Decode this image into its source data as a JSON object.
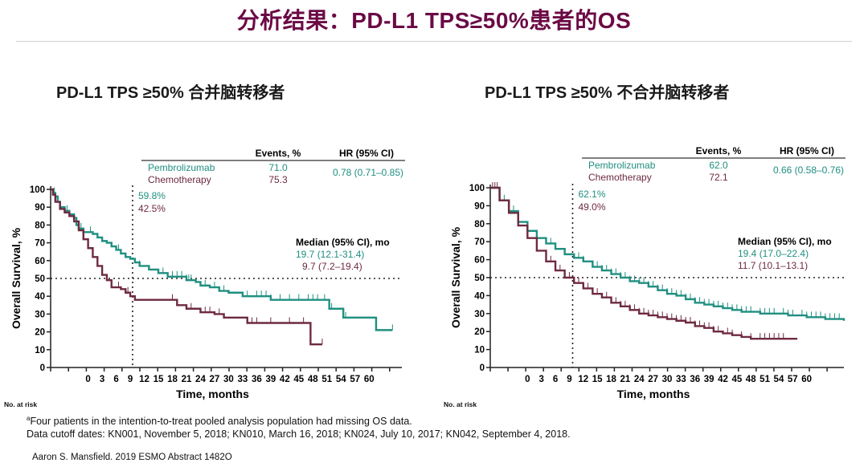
{
  "page": {
    "title": "分析结果：PD-L1 TPS≥50%患者的OS",
    "accent_color": "#6b0a45",
    "footnote_line1_sup": "a",
    "footnote_line1": "Four patients in the intention-to-treat pooled analysis population had missing  OS data.",
    "footnote_line2": "Data cutoff dates: KN001, November 5, 2018; KN010, March 16, 2018; KN024, July 10, 2017; KN042, September 4, 2018.",
    "citation": "Aaron S. Mansfield. 2019 ESMO Abstract 1482O"
  },
  "chart_data": [
    {
      "type": "line",
      "title": "PD-L1 TPS ≥50% 合并脑转移者",
      "xlabel": "Time, months",
      "ylabel": "Overall Survival, %",
      "no_at_risk_label": "No. at risk",
      "xlim": [
        -8,
        67
      ],
      "ylim": [
        0,
        100
      ],
      "x_ticks": [
        0,
        3,
        6,
        9,
        12,
        15,
        18,
        21,
        24,
        27,
        30,
        33,
        36,
        39,
        42,
        45,
        48,
        51,
        54,
        57,
        60
      ],
      "y_ticks": [
        0,
        10,
        20,
        30,
        40,
        50,
        60,
        70,
        80,
        90,
        100
      ],
      "reference_lines": {
        "y": 50,
        "x": 9.5
      },
      "landmark_labels": [
        "59.8%",
        "42.5%"
      ],
      "table": {
        "headers": [
          "Events, %",
          "HR (95% CI)"
        ],
        "rows": [
          {
            "name": "Pembrolizumab",
            "events": "71.0"
          },
          {
            "name": "Chemotherapy",
            "events": "75.3"
          }
        ],
        "hr": "0.78 (0.71–0.85)"
      },
      "median_header": "Median (95% CI), mo",
      "medians": [
        "19.7 (12.1-31.4)",
        "9.7 (7.2–19.4)"
      ],
      "series": [
        {
          "name": "Pembrolizumab",
          "color": "#1f8f80",
          "points": [
            [
              -8,
              100
            ],
            [
              -7.5,
              98
            ],
            [
              -7,
              96
            ],
            [
              -6.5,
              93
            ],
            [
              -6,
              90
            ],
            [
              -5,
              88
            ],
            [
              -4,
              86
            ],
            [
              -3,
              84
            ],
            [
              -2.5,
              80
            ],
            [
              -2,
              78
            ],
            [
              -1,
              76
            ],
            [
              0,
              76
            ],
            [
              1,
              75
            ],
            [
              2,
              73
            ],
            [
              3,
              71
            ],
            [
              4,
              70
            ],
            [
              5,
              68
            ],
            [
              6,
              66
            ],
            [
              7,
              64
            ],
            [
              8,
              62
            ],
            [
              9,
              61
            ],
            [
              10,
              59
            ],
            [
              11,
              57
            ],
            [
              13,
              55
            ],
            [
              15,
              53
            ],
            [
              17,
              51
            ],
            [
              19,
              51
            ],
            [
              21,
              49
            ],
            [
              23,
              48
            ],
            [
              24,
              46
            ],
            [
              26,
              45
            ],
            [
              28,
              43
            ],
            [
              30,
              42
            ],
            [
              33,
              40
            ],
            [
              36,
              40
            ],
            [
              39,
              38
            ],
            [
              44,
              38
            ],
            [
              48,
              38
            ],
            [
              51,
              38
            ],
            [
              51.5,
              33
            ],
            [
              54,
              33
            ],
            [
              54.5,
              28
            ],
            [
              61,
              28
            ],
            [
              61.5,
              21
            ],
            [
              65,
              21
            ]
          ],
          "censor_times": [
            -7.2,
            -4.5,
            -1.5,
            0.5,
            6.5,
            11,
            16,
            18,
            19,
            20,
            21,
            21.5,
            22,
            25,
            27,
            29,
            34,
            36,
            37,
            38,
            39,
            41,
            43,
            45,
            47,
            48,
            49,
            50.5,
            52,
            55,
            65
          ]
        },
        {
          "name": "Chemotherapy",
          "color": "#6e2a3f",
          "points": [
            [
              -8,
              100
            ],
            [
              -7.5,
              97
            ],
            [
              -7,
              93
            ],
            [
              -6,
              89
            ],
            [
              -5,
              87
            ],
            [
              -4,
              85
            ],
            [
              -3,
              82
            ],
            [
              -2,
              77
            ],
            [
              -1,
              72
            ],
            [
              0,
              67
            ],
            [
              1,
              62
            ],
            [
              2,
              57
            ],
            [
              3,
              52
            ],
            [
              4,
              49
            ],
            [
              5,
              45
            ],
            [
              6,
              45
            ],
            [
              7,
              44
            ],
            [
              8,
              42
            ],
            [
              9,
              40
            ],
            [
              10,
              38
            ],
            [
              18,
              38
            ],
            [
              19,
              35
            ],
            [
              21,
              33
            ],
            [
              23,
              33
            ],
            [
              24,
              31
            ],
            [
              27,
              30
            ],
            [
              29,
              28
            ],
            [
              33,
              28
            ],
            [
              34,
              25
            ],
            [
              47,
              25
            ],
            [
              47.5,
              13
            ],
            [
              50,
              13
            ]
          ],
          "censor_times": [
            -7,
            6.5,
            8.5,
            18,
            22,
            25,
            26,
            28,
            34,
            35,
            36,
            39,
            43,
            46,
            50
          ]
        }
      ]
    },
    {
      "type": "line",
      "title": "PD-L1 TPS ≥50% 不合并脑转移者",
      "xlabel": "Time, months",
      "ylabel": "Overall Survival, %",
      "no_at_risk_label": "No. at risk",
      "xlim": [
        -8,
        68
      ],
      "ylim": [
        0,
        100
      ],
      "x_ticks": [
        0,
        3,
        6,
        9,
        12,
        15,
        18,
        21,
        24,
        27,
        30,
        33,
        36,
        39,
        42,
        45,
        48,
        51,
        54,
        57,
        60
      ],
      "y_ticks": [
        0,
        10,
        20,
        30,
        40,
        50,
        60,
        70,
        80,
        90,
        100
      ],
      "reference_lines": {
        "y": 50,
        "x": 9.7
      },
      "landmark_labels": [
        "62.1%",
        "49.0%"
      ],
      "table": {
        "headers": [
          "Events, %",
          "HR (95% CI)"
        ],
        "rows": [
          {
            "name": "Pembrolizumab",
            "events": "62.0"
          },
          {
            "name": "Chemotherapy",
            "events": "72.1"
          }
        ],
        "hr": "0.66 (0.58–0.76)"
      },
      "median_header": "Median (95% CI), mo",
      "medians": [
        "19.4 (17.0–22.4)",
        "11.7 (10.1–13.1)"
      ],
      "series": [
        {
          "name": "Pembrolizumab",
          "color": "#1f8f80",
          "points": [
            [
              -8,
              100
            ],
            [
              -6,
              93
            ],
            [
              -4,
              87
            ],
            [
              -2,
              81
            ],
            [
              0,
              76
            ],
            [
              2,
              72
            ],
            [
              4,
              69
            ],
            [
              6,
              66
            ],
            [
              8,
              63
            ],
            [
              10,
              61
            ],
            [
              12,
              59
            ],
            [
              14,
              56
            ],
            [
              16,
              54
            ],
            [
              18,
              52
            ],
            [
              20,
              50
            ],
            [
              22,
              48
            ],
            [
              24,
              47
            ],
            [
              26,
              45
            ],
            [
              28,
              43
            ],
            [
              30,
              41
            ],
            [
              32,
              40
            ],
            [
              34,
              38
            ],
            [
              36,
              36
            ],
            [
              38,
              35
            ],
            [
              40,
              34
            ],
            [
              42,
              33
            ],
            [
              44,
              32
            ],
            [
              46,
              31
            ],
            [
              48,
              31
            ],
            [
              50,
              30
            ],
            [
              52,
              30
            ],
            [
              54,
              30
            ],
            [
              56,
              29
            ],
            [
              58,
              29
            ],
            [
              60,
              28
            ],
            [
              62,
              28
            ],
            [
              64,
              27
            ],
            [
              66,
              27
            ],
            [
              68,
              26
            ]
          ],
          "censor_times": [
            -5,
            -3,
            4,
            5,
            6,
            8,
            11,
            12,
            14,
            15,
            16,
            17,
            18,
            19,
            20,
            21,
            22,
            23,
            24,
            25,
            26,
            27,
            28,
            29,
            30,
            31,
            32,
            33,
            34,
            35,
            36,
            37,
            38,
            39,
            40,
            41,
            42,
            43,
            44,
            45,
            46,
            47,
            48,
            50,
            51,
            52,
            53,
            55,
            56,
            57,
            59,
            60,
            61,
            62,
            63,
            64,
            65,
            66,
            67
          ]
        },
        {
          "name": "Chemotherapy",
          "color": "#6e2a3f",
          "points": [
            [
              -8,
              100
            ],
            [
              -6,
              93
            ],
            [
              -4,
              86
            ],
            [
              -2,
              79
            ],
            [
              0,
              72
            ],
            [
              2,
              65
            ],
            [
              4,
              59
            ],
            [
              6,
              54
            ],
            [
              8,
              50
            ],
            [
              10,
              47
            ],
            [
              12,
              44
            ],
            [
              14,
              41
            ],
            [
              16,
              39
            ],
            [
              18,
              36
            ],
            [
              20,
              34
            ],
            [
              22,
              32
            ],
            [
              24,
              30
            ],
            [
              26,
              29
            ],
            [
              28,
              28
            ],
            [
              30,
              27
            ],
            [
              32,
              26
            ],
            [
              34,
              25
            ],
            [
              36,
              23
            ],
            [
              38,
              22
            ],
            [
              40,
              20
            ],
            [
              42,
              19
            ],
            [
              44,
              18
            ],
            [
              46,
              17
            ],
            [
              47,
              17
            ],
            [
              48,
              16
            ],
            [
              58,
              16
            ]
          ],
          "censor_times": [
            -7.5,
            -7,
            -6.5,
            -6,
            5,
            7,
            9,
            10,
            11,
            12,
            13,
            14,
            15,
            17,
            18,
            19,
            20,
            21,
            22,
            23,
            24,
            25,
            26,
            27,
            28,
            29,
            30,
            31,
            32,
            33,
            34,
            35,
            36,
            37,
            38,
            39,
            40,
            41,
            43,
            44,
            46,
            48,
            50,
            51,
            52,
            53,
            54,
            55
          ]
        }
      ]
    }
  ]
}
